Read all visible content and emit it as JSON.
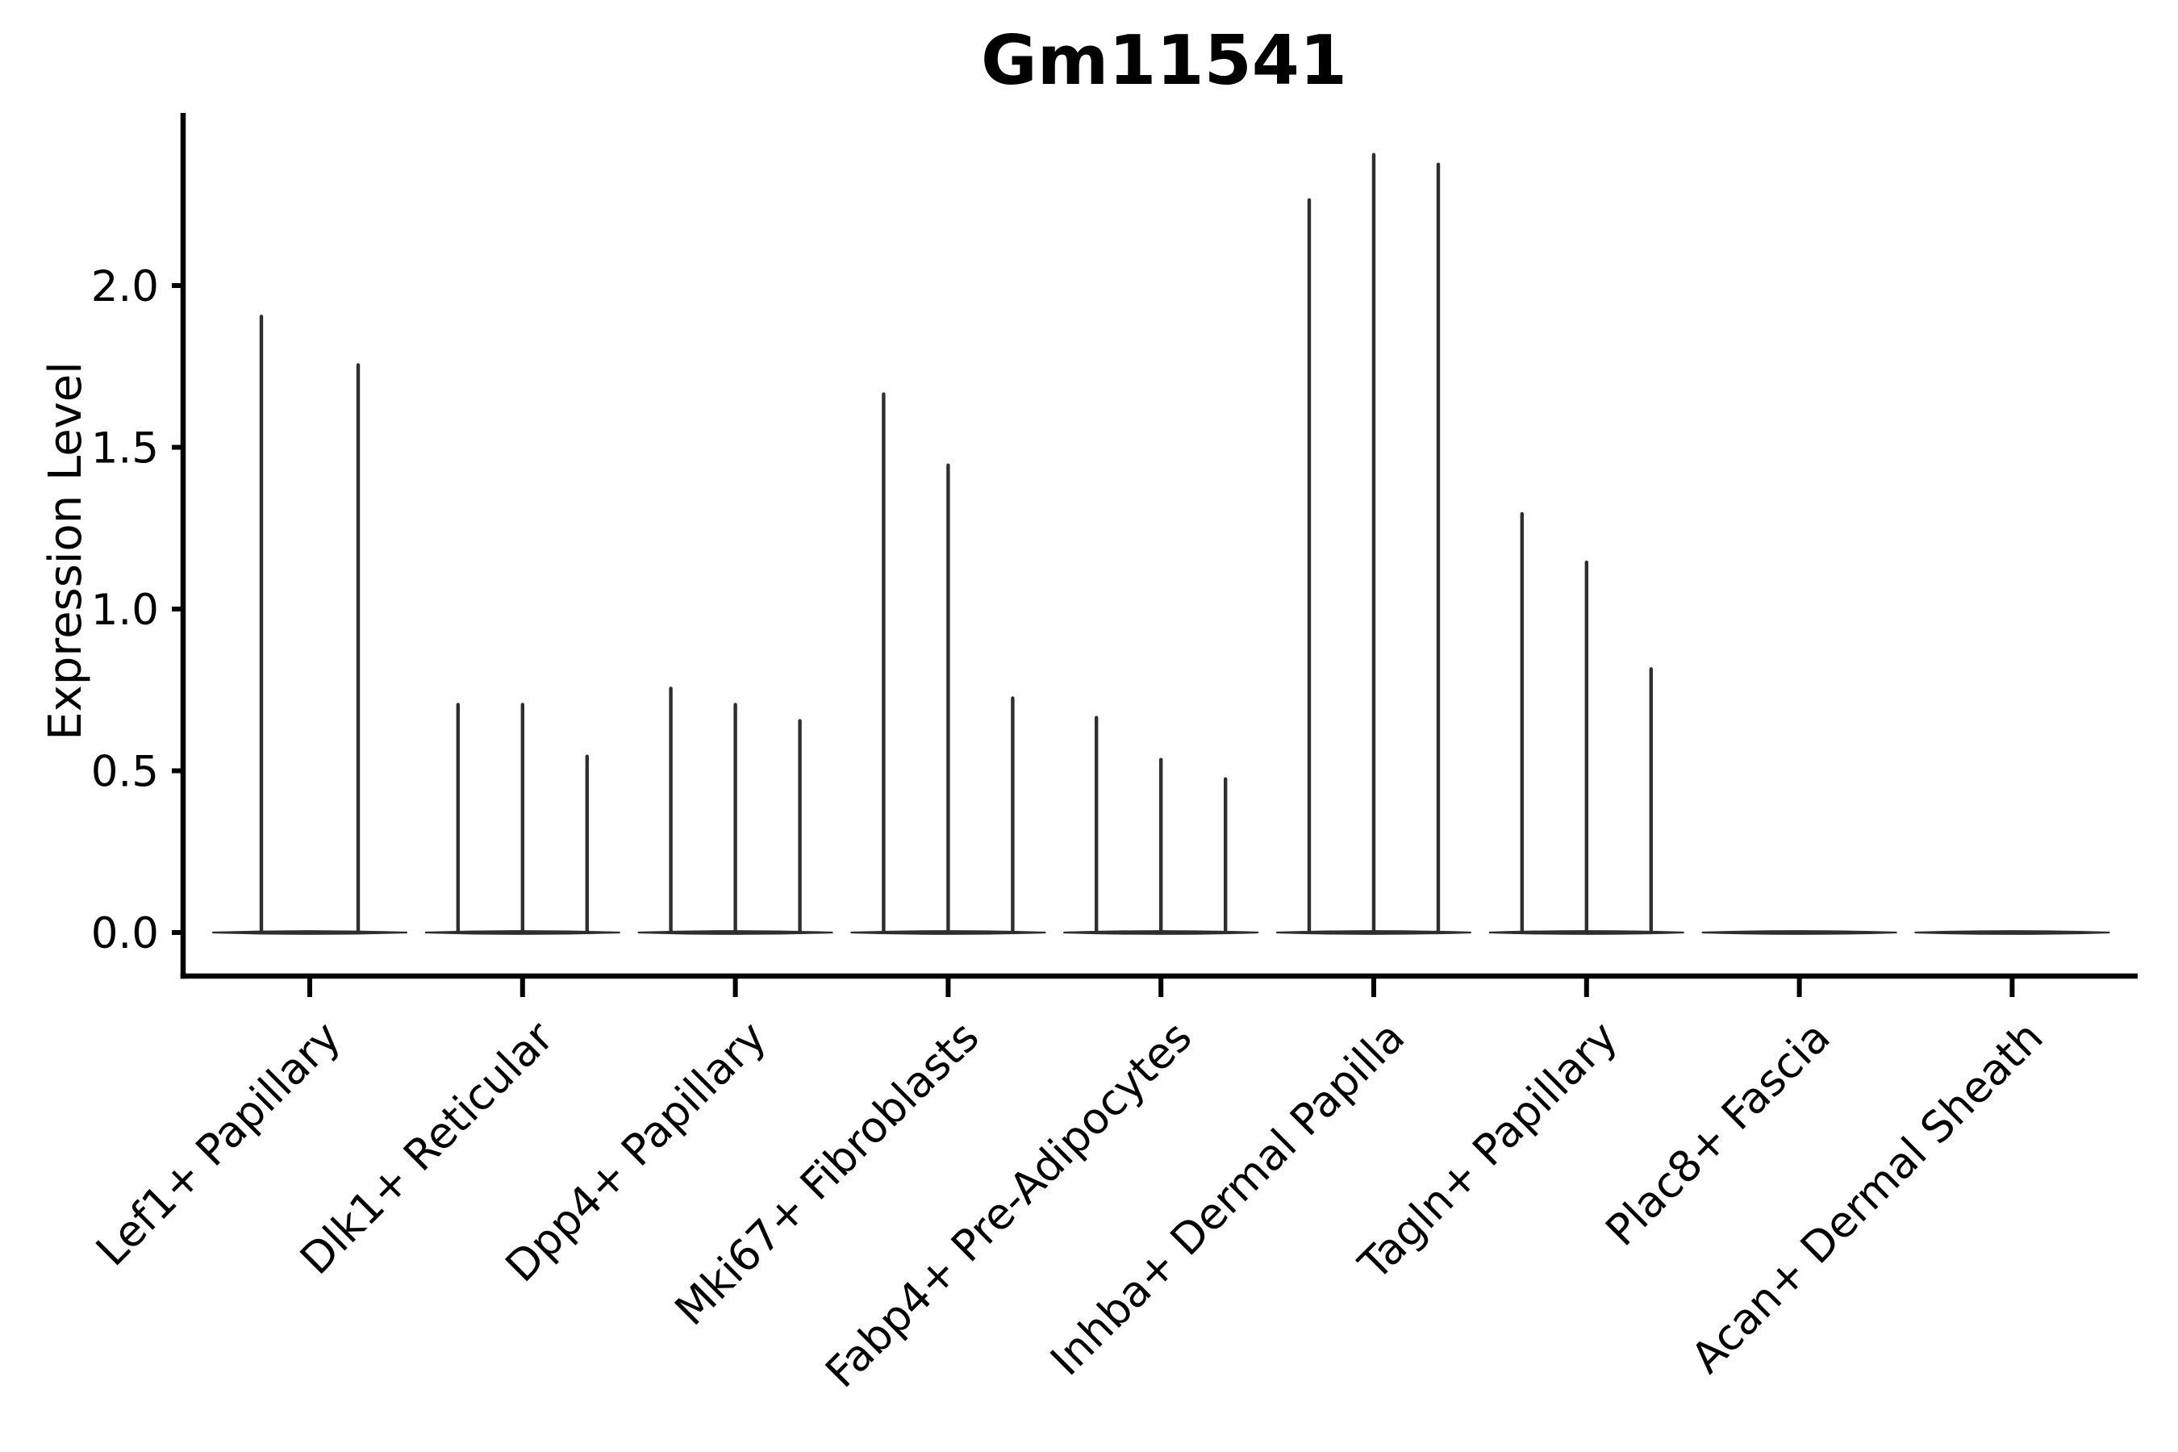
{
  "figure": {
    "title": "Gm11541"
  },
  "chart_data": {
    "type": "violin",
    "title": "Gm11541",
    "xlabel": "",
    "ylabel": "Expression Level",
    "categories": [
      "Lef1+ Papillary",
      "Dlk1+ Reticular",
      "Dpp4+ Papillary",
      "Mki67+ Fibroblasts",
      "Fabp4+ Pre-Adipocytes",
      "Inhba+ Dermal Papilla",
      "Tagln+ Papillary",
      "Plac8+ Fascia",
      "Acan+ Dermal Sheath"
    ],
    "series": [
      {
        "category": "Lef1+ Papillary",
        "violin_max_values": [
          1.91,
          1.76
        ]
      },
      {
        "category": "Dlk1+ Reticular",
        "violin_max_values": [
          0.71,
          0.71,
          0.55
        ]
      },
      {
        "category": "Dpp4+ Papillary",
        "violin_max_values": [
          0.76,
          0.71,
          0.66
        ]
      },
      {
        "category": "Mki67+ Fibroblasts",
        "violin_max_values": [
          1.67,
          1.45,
          0.73
        ]
      },
      {
        "category": "Fabp4+ Pre-Adipocytes",
        "violin_max_values": [
          0.67,
          0.54,
          0.48
        ]
      },
      {
        "category": "Inhba+ Dermal Papilla",
        "violin_max_values": [
          2.27,
          2.41,
          2.38
        ]
      },
      {
        "category": "Tagln+ Papillary",
        "violin_max_values": [
          1.3,
          1.15,
          0.82
        ]
      },
      {
        "category": "Plac8+ Fascia",
        "violin_max_values": [
          0.0,
          0.0,
          0.0
        ]
      },
      {
        "category": "Acan+ Dermal Sheath",
        "violin_max_values": [
          0.0,
          0.0,
          0.0
        ]
      }
    ],
    "baseline_value": 0.0,
    "yticks": [
      "0.0",
      "0.5",
      "1.0",
      "1.5",
      "2.0"
    ],
    "ytick_values": [
      0.0,
      0.5,
      1.0,
      1.5,
      2.0
    ],
    "ylim": [
      -0.13,
      2.53
    ],
    "grid": false,
    "legend": null,
    "x_tick_label_rotation_deg": 45,
    "violin_color": "#2e2e2e",
    "axis_color": "#000000"
  }
}
